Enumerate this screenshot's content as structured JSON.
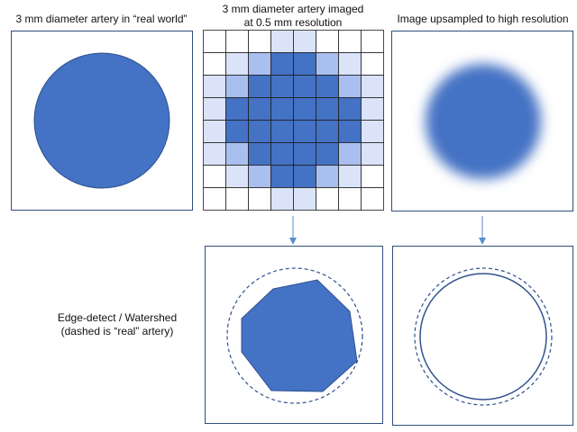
{
  "captions": {
    "real_world": "3 mm diameter artery in “real world”",
    "imaged_line1": "3 mm diameter artery imaged",
    "imaged_line2": "at 0.5 mm resolution",
    "upsampled": "Image upsampled to high resolution"
  },
  "side_note": {
    "line1": "Edge-detect / Watershed",
    "line2": "(dashed is “real” artery)"
  },
  "colors": {
    "artery_fill": "#4472c4",
    "artery_stroke": "#2f528f",
    "panel_border": "#2f4f7f",
    "pixel_full": "#4472c4",
    "pixel_mid": "#a9bff0",
    "pixel_light": "#dae3f8",
    "grid_line": "#1f1f1f",
    "arrow": "#5b8bd0"
  },
  "pixel_grid": {
    "size": 8,
    "intensity": [
      [
        0,
        0,
        0,
        1,
        1,
        0,
        0,
        0
      ],
      [
        0,
        1,
        2,
        3,
        3,
        2,
        1,
        0
      ],
      [
        1,
        2,
        3,
        3,
        3,
        3,
        2,
        1
      ],
      [
        1,
        3,
        3,
        3,
        3,
        3,
        3,
        1
      ],
      [
        1,
        3,
        3,
        3,
        3,
        3,
        3,
        1
      ],
      [
        1,
        2,
        3,
        3,
        3,
        3,
        2,
        1
      ],
      [
        0,
        1,
        2,
        3,
        3,
        2,
        1,
        0
      ],
      [
        0,
        0,
        0,
        1,
        1,
        0,
        0,
        0
      ]
    ]
  }
}
